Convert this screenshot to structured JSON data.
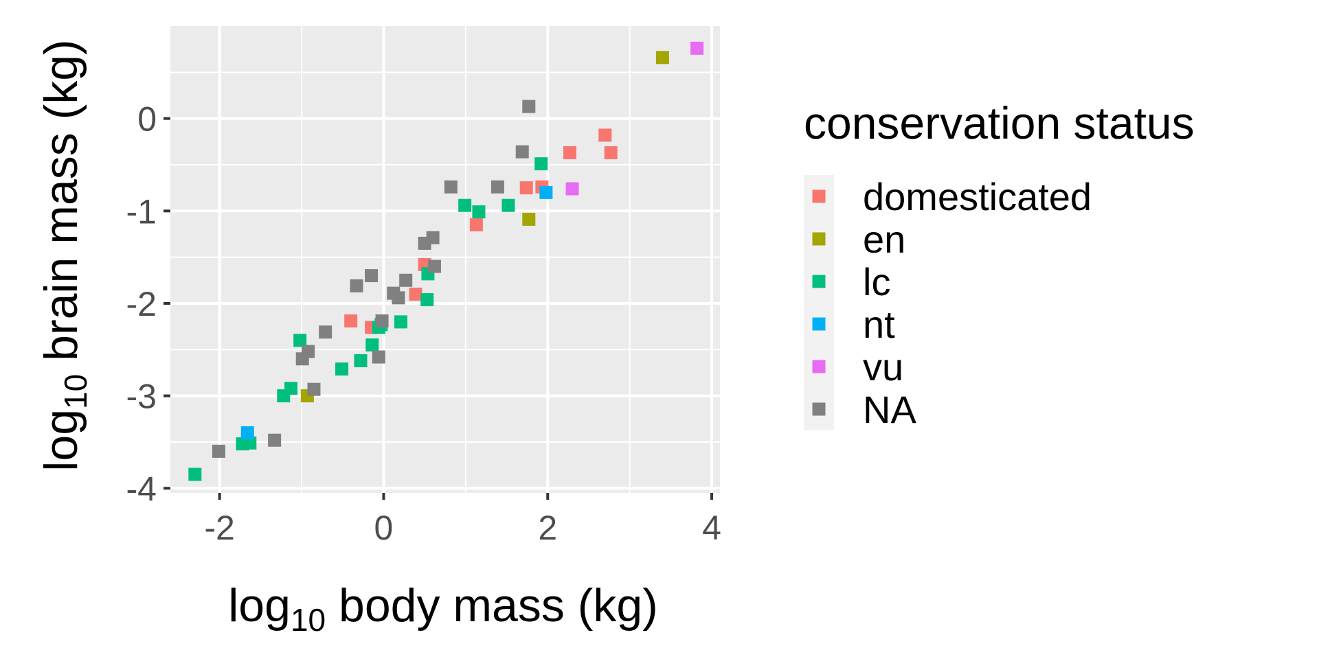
{
  "chart_data": {
    "type": "scatter",
    "xlabel": {
      "base": "log",
      "sub": "10",
      "rest": " body mass (kg)"
    },
    "ylabel": {
      "base": "log",
      "sub": "10",
      "rest": " brain mass (kg)"
    },
    "xlim": [
      -2.6,
      4.1
    ],
    "ylim": [
      -4.05,
      1.0
    ],
    "x_ticks": [
      -2,
      0,
      2,
      4
    ],
    "x_tick_labels": [
      "-2",
      "0",
      "2",
      "4"
    ],
    "y_ticks": [
      -4,
      -3,
      -2,
      -1,
      0
    ],
    "y_tick_labels": [
      "-4",
      "-3",
      "-2",
      "-1",
      "0"
    ],
    "grid": true,
    "legend": {
      "title": "conservation status",
      "position": "right",
      "entries": [
        {
          "name": "domesticated",
          "color": "#F8766D"
        },
        {
          "name": "en",
          "color": "#A3A500"
        },
        {
          "name": "lc",
          "color": "#00BF7D"
        },
        {
          "name": "nt",
          "color": "#00B0F6"
        },
        {
          "name": "vu",
          "color": "#E76BF3"
        },
        {
          "name": "NA",
          "color": "#808080"
        }
      ]
    },
    "series": [
      {
        "name": "domesticated",
        "color": "#F8766D",
        "points": [
          [
            2.7,
            -0.18
          ],
          [
            2.77,
            -0.37
          ],
          [
            2.27,
            -0.37
          ],
          [
            1.74,
            -0.75
          ],
          [
            1.93,
            -0.74
          ],
          [
            1.13,
            -1.15
          ],
          [
            0.5,
            -1.58
          ],
          [
            0.39,
            -1.9
          ],
          [
            -0.4,
            -2.19
          ],
          [
            -0.15,
            -2.26
          ]
        ]
      },
      {
        "name": "en",
        "color": "#A3A500",
        "points": [
          [
            3.4,
            0.66
          ],
          [
            1.77,
            -1.09
          ],
          [
            -0.93,
            -3.0
          ]
        ]
      },
      {
        "name": "lc",
        "color": "#00BF7D",
        "points": [
          [
            1.92,
            -0.49
          ],
          [
            0.99,
            -0.94
          ],
          [
            1.16,
            -1.01
          ],
          [
            1.52,
            -0.94
          ],
          [
            0.54,
            -1.68
          ],
          [
            0.53,
            -1.96
          ],
          [
            0.21,
            -2.2
          ],
          [
            -0.03,
            -2.23
          ],
          [
            -0.06,
            -2.26
          ],
          [
            -1.02,
            -2.4
          ],
          [
            -0.14,
            -2.45
          ],
          [
            -0.28,
            -2.62
          ],
          [
            -0.51,
            -2.71
          ],
          [
            -1.13,
            -2.92
          ],
          [
            -1.22,
            -3.0
          ],
          [
            -1.63,
            -3.51
          ],
          [
            -1.72,
            -3.52
          ],
          [
            -2.3,
            -3.85
          ]
        ]
      },
      {
        "name": "nt",
        "color": "#00B0F6",
        "points": [
          [
            1.98,
            -0.8
          ],
          [
            -1.66,
            -3.4
          ]
        ]
      },
      {
        "name": "vu",
        "color": "#E76BF3",
        "points": [
          [
            3.82,
            0.76
          ],
          [
            2.3,
            -0.76
          ]
        ]
      },
      {
        "name": "NA",
        "color": "#808080",
        "points": [
          [
            1.77,
            0.13
          ],
          [
            1.69,
            -0.36
          ],
          [
            0.82,
            -0.74
          ],
          [
            1.39,
            -0.74
          ],
          [
            0.6,
            -1.29
          ],
          [
            0.5,
            -1.35
          ],
          [
            0.62,
            -1.6
          ],
          [
            -0.33,
            -1.81
          ],
          [
            -0.15,
            -1.7
          ],
          [
            0.27,
            -1.75
          ],
          [
            0.12,
            -1.89
          ],
          [
            0.18,
            -1.94
          ],
          [
            -0.02,
            -2.19
          ],
          [
            -0.71,
            -2.31
          ],
          [
            -0.92,
            -2.52
          ],
          [
            -0.99,
            -2.6
          ],
          [
            -0.06,
            -2.58
          ],
          [
            -0.85,
            -2.93
          ],
          [
            -1.33,
            -3.48
          ],
          [
            -2.01,
            -3.6
          ]
        ]
      }
    ]
  }
}
